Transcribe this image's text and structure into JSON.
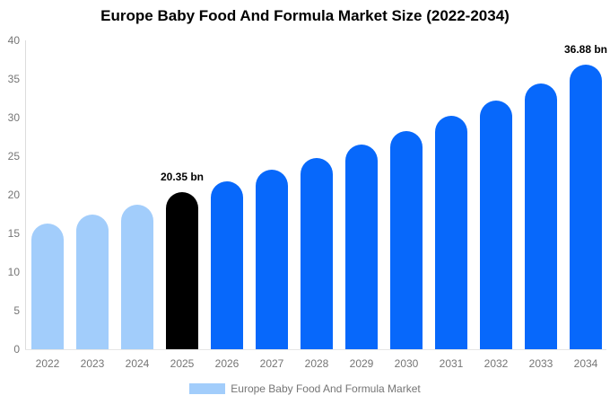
{
  "chart_data": {
    "type": "bar",
    "title": "Europe Baby Food And Formula Market Size (2022-2034)",
    "categories": [
      "2022",
      "2023",
      "2024",
      "2025",
      "2026",
      "2027",
      "2028",
      "2029",
      "2030",
      "2031",
      "2032",
      "2033",
      "2034"
    ],
    "values": [
      16.3,
      17.5,
      18.7,
      20.35,
      21.7,
      23.2,
      24.8,
      26.5,
      28.3,
      30.2,
      32.2,
      34.4,
      36.88
    ],
    "bar_colors": [
      "#A2CDFB",
      "#A2CDFB",
      "#A2CDFB",
      "#000000",
      "#0768FB",
      "#0768FB",
      "#0768FB",
      "#0768FB",
      "#0768FB",
      "#0768FB",
      "#0768FB",
      "#0768FB",
      "#0768FB"
    ],
    "annotations": {
      "2025": "20.35 bn",
      "2034": "36.88 bn"
    },
    "xlabel": "",
    "ylabel": "",
    "ylim": [
      0,
      40
    ],
    "yticks": [
      0,
      5,
      10,
      15,
      20,
      25,
      30,
      35,
      40
    ],
    "grid": false,
    "legend_position": "bottom",
    "legend": {
      "label": "Europe Baby Food And Formula Market",
      "swatch_color": "#A2CDFB"
    },
    "colors": {
      "light_blue": "#A2CDFB",
      "blue": "#0768FB",
      "black": "#000000",
      "axis_line_gray": "#DCDCDC",
      "tick_label_gray": "#757575",
      "annotation_color": "#000000",
      "title_color": "#000000",
      "background": "#FFFFFF"
    }
  }
}
